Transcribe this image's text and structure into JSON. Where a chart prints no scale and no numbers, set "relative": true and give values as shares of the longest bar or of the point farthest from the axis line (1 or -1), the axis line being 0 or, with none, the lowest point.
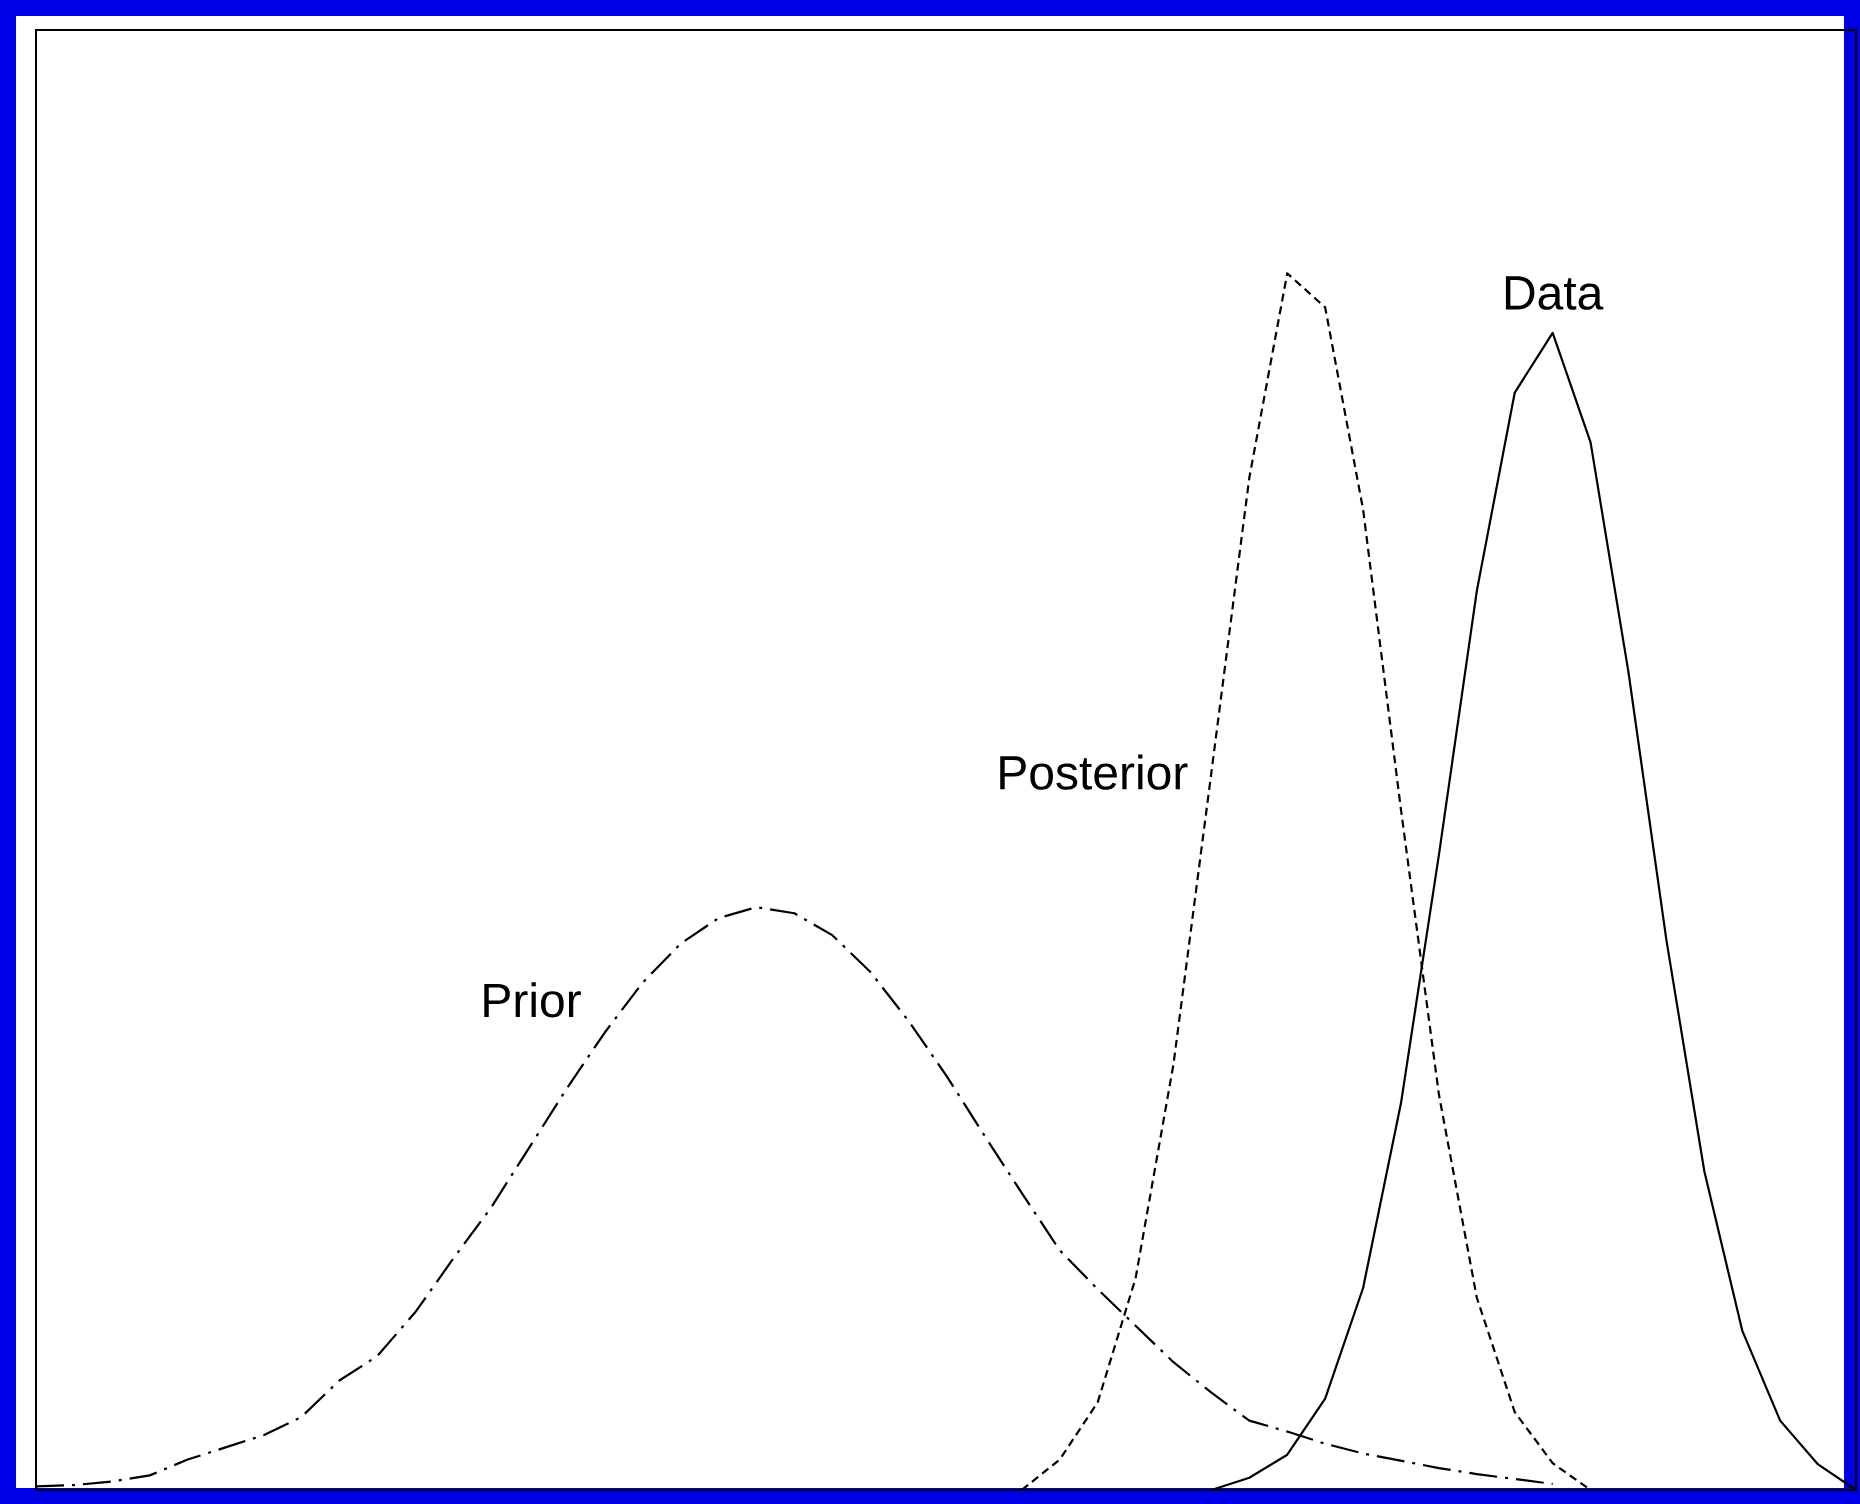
{
  "chart_data": {
    "type": "line",
    "relative": true,
    "legend": false,
    "marker": "none",
    "categories": [
      null,
      null,
      null,
      null,
      null,
      null,
      null,
      null,
      null,
      null,
      null,
      null,
      null,
      null,
      null,
      null,
      null,
      null,
      null,
      null,
      null,
      null,
      null,
      null,
      null,
      null,
      null,
      null,
      null,
      null,
      null,
      null,
      null,
      null,
      null,
      null,
      null,
      null,
      null,
      null,
      null,
      null,
      null,
      null,
      null,
      null,
      null,
      null,
      null
    ],
    "series": [
      {
        "name": "Prior",
        "color": "#000000",
        "line_style": "dashdot",
        "values": [
          0.003,
          0.004,
          0.007,
          0.012,
          0.025,
          0.035,
          0.045,
          0.06,
          0.09,
          0.11,
          0.146,
          0.19,
          0.232,
          0.281,
          0.33,
          0.376,
          0.417,
          0.449,
          0.47,
          0.479,
          0.474,
          0.456,
          0.426,
          0.386,
          0.341,
          0.292,
          0.244,
          0.197,
          0.165,
          0.135,
          0.105,
          0.08,
          0.057,
          0.048,
          0.038,
          0.03,
          0.024,
          0.018,
          0.013,
          0.009,
          0.005,
          null,
          null,
          null,
          null,
          null,
          null,
          null,
          null
        ]
      },
      {
        "name": "Posterior",
        "color": "#000000",
        "line_style": "dashed",
        "values": [
          null,
          null,
          null,
          null,
          null,
          null,
          null,
          null,
          null,
          null,
          null,
          null,
          null,
          null,
          null,
          null,
          null,
          null,
          null,
          null,
          null,
          null,
          null,
          null,
          null,
          null,
          0,
          0.025,
          0.072,
          0.174,
          0.35,
          0.59,
          0.832,
          1.0,
          0.972,
          0.806,
          0.559,
          0.325,
          0.158,
          0.064,
          0.022,
          0,
          null,
          null,
          null,
          null,
          null,
          null,
          null
        ]
      },
      {
        "name": "Data",
        "color": "#000000",
        "line_style": "solid",
        "values": [
          null,
          null,
          null,
          null,
          null,
          null,
          null,
          null,
          null,
          null,
          null,
          null,
          null,
          null,
          null,
          null,
          null,
          null,
          null,
          null,
          null,
          null,
          null,
          null,
          null,
          null,
          null,
          null,
          null,
          null,
          null,
          0,
          0.01,
          0.029,
          0.075,
          0.166,
          0.318,
          0.522,
          0.739,
          0.902,
          0.951,
          0.861,
          0.672,
          0.452,
          0.262,
          0.131,
          0.057,
          0.021,
          0
        ]
      }
    ]
  }
}
